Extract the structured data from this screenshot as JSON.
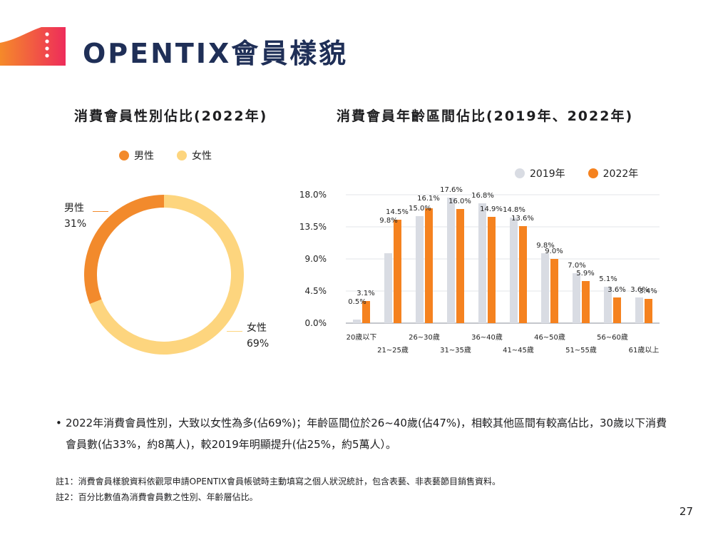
{
  "header": {
    "title": "OPENTIX會員樣貌"
  },
  "colors": {
    "accent": "#f5821f",
    "navy": "#1f2f57",
    "female": "#fdd57e",
    "male": "#f28a2c",
    "y2019": "#d9dce3",
    "y2022": "#f5821f"
  },
  "chart_data": [
    {
      "type": "pie",
      "title": "消費會員性別佔比(2022年)",
      "legend_position": "top",
      "slices": [
        {
          "name": "男性",
          "label": "31%",
          "value": 31
        },
        {
          "name": "女性",
          "label": "69%",
          "value": 69
        }
      ]
    },
    {
      "type": "bar",
      "title": "消費會員年齡區間佔比(2019年、2022年)",
      "legend_position": "top-right",
      "grid": true,
      "ylim": [
        0,
        18
      ],
      "yticks": [
        "0.0%",
        "4.5%",
        "9.0%",
        "13.5%",
        "18.0%"
      ],
      "categories": [
        "20歲以下",
        "21~25歲",
        "26~30歲",
        "31~35歲",
        "36~40歲",
        "41~45歲",
        "46~50歲",
        "51~55歲",
        "56~60歲",
        "61歲以上"
      ],
      "series": [
        {
          "name": "2019年",
          "values": [
            0.5,
            9.8,
            15.0,
            17.6,
            16.8,
            14.8,
            9.8,
            7.0,
            5.1,
            3.6
          ],
          "labels": [
            "0.5%",
            "9.8%",
            "15.0%",
            "17.6%",
            "16.8%",
            "14.8%",
            "9.8%",
            "7.0%",
            "5.1%",
            "3.6%"
          ]
        },
        {
          "name": "2022年",
          "values": [
            3.1,
            14.5,
            16.1,
            16.0,
            14.9,
            13.6,
            9.0,
            5.9,
            3.6,
            3.4
          ],
          "labels": [
            "3.1%",
            "14.5%",
            "16.1%",
            "16.0%",
            "14.9%",
            "13.6%",
            "9.0%",
            "5.9%",
            "3.6%",
            "3.4%"
          ]
        }
      ]
    }
  ],
  "summary": {
    "bullet": "•",
    "text": "2022年消費會員性別，大致以女性為多(佔69%)；年齡區間位於26~40歲(佔47%)，相較其他區間有較高佔比，30歲以下消費會員數(佔33%，約8萬人)，較2019年明顯提升(佔25%，約5萬人）。"
  },
  "notes": [
    "註1：消費會員樣貌資料依觀眾申請OPENTIX會員帳號時主動填寫之個人狀況統計，包含表藝、非表藝節目銷售資料。",
    "註2：百分比數值為消費會員數之性別、年齡層佔比。"
  ],
  "page_number": "27"
}
